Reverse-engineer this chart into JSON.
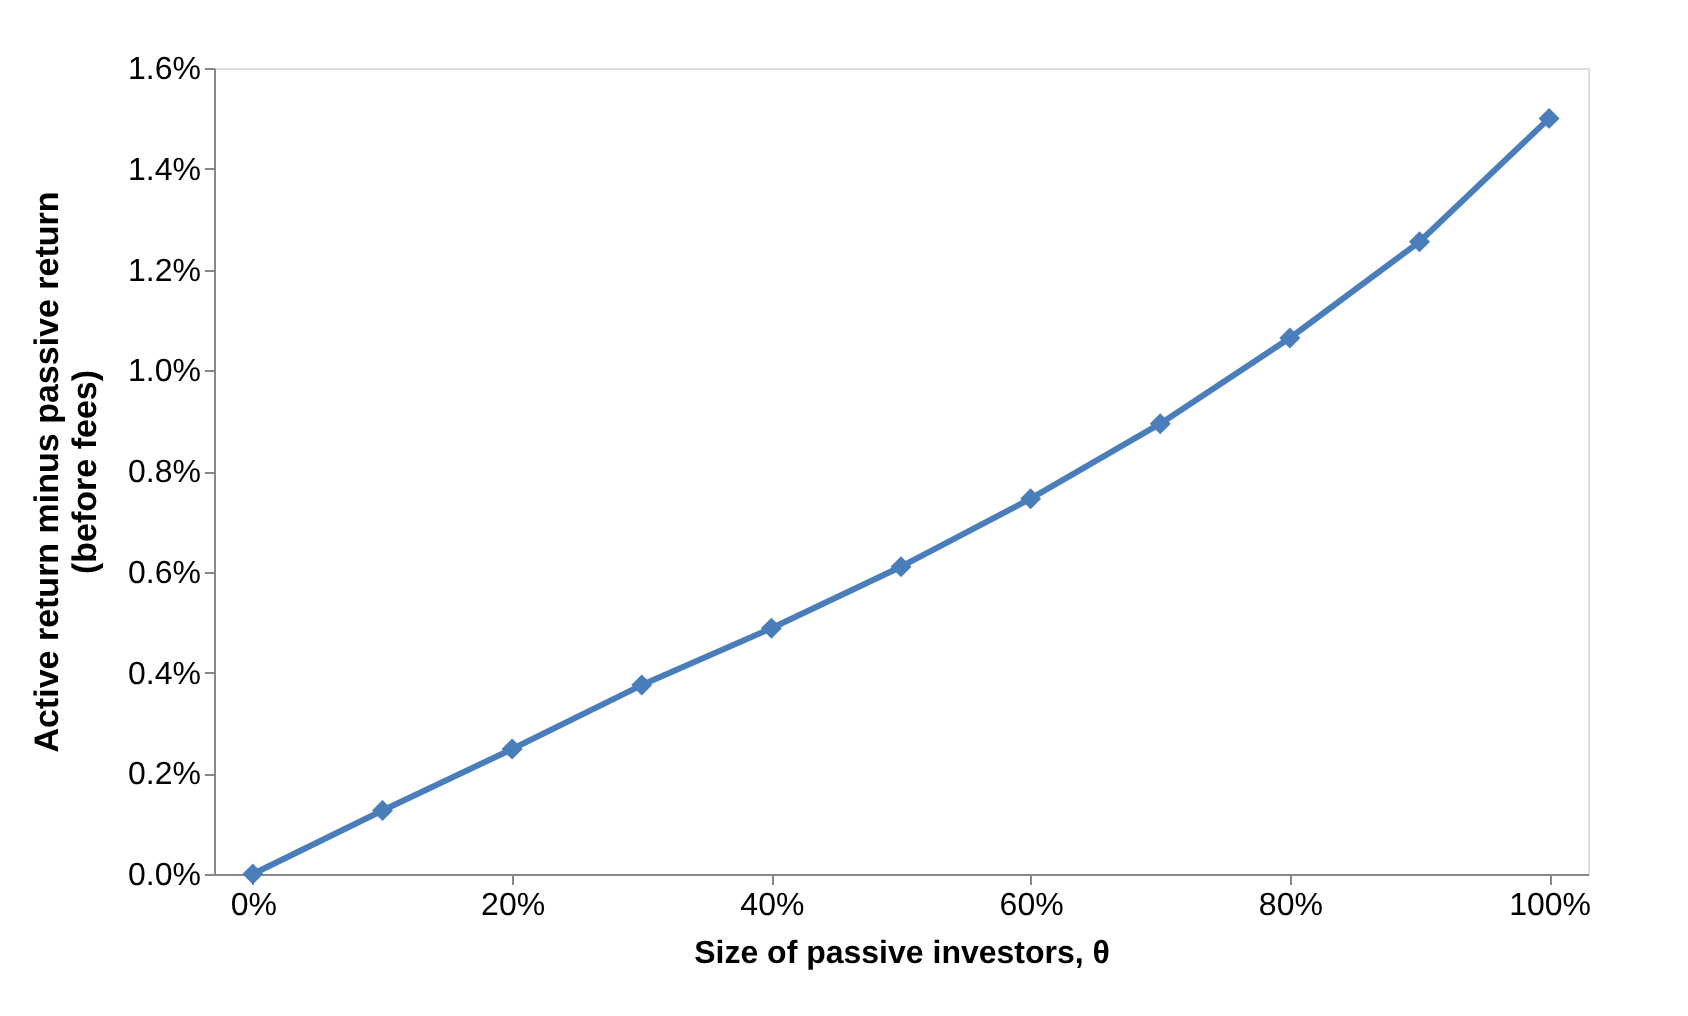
{
  "chart_data": {
    "type": "line",
    "xlabel": "Size of passive investors, θ",
    "ylabel": "Active return minus passive return\n(before fees)",
    "x": [
      0,
      10,
      20,
      30,
      40,
      50,
      60,
      70,
      80,
      90,
      100
    ],
    "series": [
      {
        "color": "#4a7ebb",
        "values": [
          0.0,
          0.126,
          0.248,
          0.375,
          0.488,
          0.61,
          0.745,
          0.894,
          1.064,
          1.255,
          1.5
        ]
      }
    ],
    "xlim": [
      -3,
      103
    ],
    "xticks": [
      {
        "value": 0,
        "label": "0%"
      },
      {
        "value": 20,
        "label": "20%"
      },
      {
        "value": 40,
        "label": "40%"
      },
      {
        "value": 60,
        "label": "60%"
      },
      {
        "value": 80,
        "label": "80%"
      },
      {
        "value": 100,
        "label": "100%"
      }
    ],
    "ylim": [
      0,
      1.6
    ],
    "yticks": [
      {
        "value": 0,
        "label": "0.0%"
      },
      {
        "value": 0.2,
        "label": "0.2%"
      },
      {
        "value": 0.4,
        "label": "0.4%"
      },
      {
        "value": 0.6,
        "label": "0.6%"
      },
      {
        "value": 0.8,
        "label": "0.8%"
      },
      {
        "value": 1.0,
        "label": "1.0%"
      },
      {
        "value": 1.2,
        "label": "1.2%"
      },
      {
        "value": 1.4,
        "label": "1.4%"
      },
      {
        "value": 1.6,
        "label": "1.6%"
      }
    ],
    "marker": "diamond",
    "line_style": "solid",
    "grid": false
  }
}
